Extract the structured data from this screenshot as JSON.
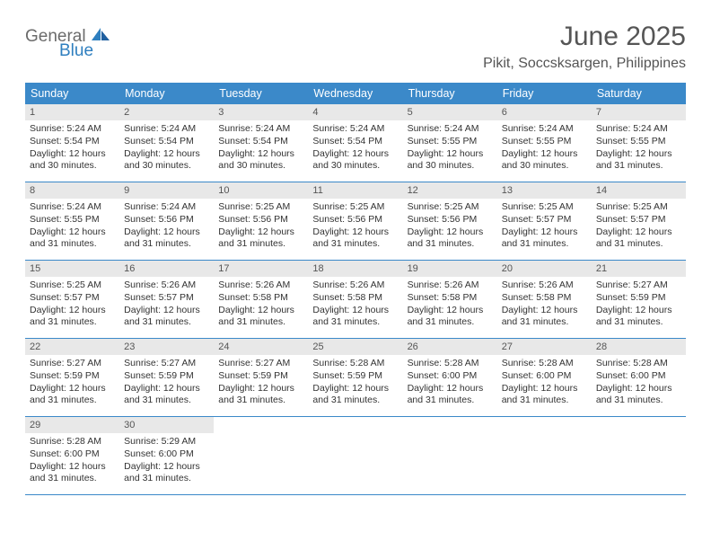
{
  "logo": {
    "word1": "General",
    "word2": "Blue"
  },
  "title": "June 2025",
  "location": "Pikit, Soccsksargen, Philippines",
  "colors": {
    "header_blue": "#3b89c9",
    "daynum_gray": "#e8e8e8",
    "rule_blue": "#3b89c9",
    "logo_gray": "#6b6b6b",
    "logo_blue": "#2f7fbf",
    "text": "#333333",
    "title_gray": "#555555"
  },
  "weekdays": [
    "Sunday",
    "Monday",
    "Tuesday",
    "Wednesday",
    "Thursday",
    "Friday",
    "Saturday"
  ],
  "weeks": [
    [
      {
        "n": "1",
        "sr": "Sunrise: 5:24 AM",
        "ss": "Sunset: 5:54 PM",
        "d1": "Daylight: 12 hours",
        "d2": "and 30 minutes."
      },
      {
        "n": "2",
        "sr": "Sunrise: 5:24 AM",
        "ss": "Sunset: 5:54 PM",
        "d1": "Daylight: 12 hours",
        "d2": "and 30 minutes."
      },
      {
        "n": "3",
        "sr": "Sunrise: 5:24 AM",
        "ss": "Sunset: 5:54 PM",
        "d1": "Daylight: 12 hours",
        "d2": "and 30 minutes."
      },
      {
        "n": "4",
        "sr": "Sunrise: 5:24 AM",
        "ss": "Sunset: 5:54 PM",
        "d1": "Daylight: 12 hours",
        "d2": "and 30 minutes."
      },
      {
        "n": "5",
        "sr": "Sunrise: 5:24 AM",
        "ss": "Sunset: 5:55 PM",
        "d1": "Daylight: 12 hours",
        "d2": "and 30 minutes."
      },
      {
        "n": "6",
        "sr": "Sunrise: 5:24 AM",
        "ss": "Sunset: 5:55 PM",
        "d1": "Daylight: 12 hours",
        "d2": "and 30 minutes."
      },
      {
        "n": "7",
        "sr": "Sunrise: 5:24 AM",
        "ss": "Sunset: 5:55 PM",
        "d1": "Daylight: 12 hours",
        "d2": "and 31 minutes."
      }
    ],
    [
      {
        "n": "8",
        "sr": "Sunrise: 5:24 AM",
        "ss": "Sunset: 5:55 PM",
        "d1": "Daylight: 12 hours",
        "d2": "and 31 minutes."
      },
      {
        "n": "9",
        "sr": "Sunrise: 5:24 AM",
        "ss": "Sunset: 5:56 PM",
        "d1": "Daylight: 12 hours",
        "d2": "and 31 minutes."
      },
      {
        "n": "10",
        "sr": "Sunrise: 5:25 AM",
        "ss": "Sunset: 5:56 PM",
        "d1": "Daylight: 12 hours",
        "d2": "and 31 minutes."
      },
      {
        "n": "11",
        "sr": "Sunrise: 5:25 AM",
        "ss": "Sunset: 5:56 PM",
        "d1": "Daylight: 12 hours",
        "d2": "and 31 minutes."
      },
      {
        "n": "12",
        "sr": "Sunrise: 5:25 AM",
        "ss": "Sunset: 5:56 PM",
        "d1": "Daylight: 12 hours",
        "d2": "and 31 minutes."
      },
      {
        "n": "13",
        "sr": "Sunrise: 5:25 AM",
        "ss": "Sunset: 5:57 PM",
        "d1": "Daylight: 12 hours",
        "d2": "and 31 minutes."
      },
      {
        "n": "14",
        "sr": "Sunrise: 5:25 AM",
        "ss": "Sunset: 5:57 PM",
        "d1": "Daylight: 12 hours",
        "d2": "and 31 minutes."
      }
    ],
    [
      {
        "n": "15",
        "sr": "Sunrise: 5:25 AM",
        "ss": "Sunset: 5:57 PM",
        "d1": "Daylight: 12 hours",
        "d2": "and 31 minutes."
      },
      {
        "n": "16",
        "sr": "Sunrise: 5:26 AM",
        "ss": "Sunset: 5:57 PM",
        "d1": "Daylight: 12 hours",
        "d2": "and 31 minutes."
      },
      {
        "n": "17",
        "sr": "Sunrise: 5:26 AM",
        "ss": "Sunset: 5:58 PM",
        "d1": "Daylight: 12 hours",
        "d2": "and 31 minutes."
      },
      {
        "n": "18",
        "sr": "Sunrise: 5:26 AM",
        "ss": "Sunset: 5:58 PM",
        "d1": "Daylight: 12 hours",
        "d2": "and 31 minutes."
      },
      {
        "n": "19",
        "sr": "Sunrise: 5:26 AM",
        "ss": "Sunset: 5:58 PM",
        "d1": "Daylight: 12 hours",
        "d2": "and 31 minutes."
      },
      {
        "n": "20",
        "sr": "Sunrise: 5:26 AM",
        "ss": "Sunset: 5:58 PM",
        "d1": "Daylight: 12 hours",
        "d2": "and 31 minutes."
      },
      {
        "n": "21",
        "sr": "Sunrise: 5:27 AM",
        "ss": "Sunset: 5:59 PM",
        "d1": "Daylight: 12 hours",
        "d2": "and 31 minutes."
      }
    ],
    [
      {
        "n": "22",
        "sr": "Sunrise: 5:27 AM",
        "ss": "Sunset: 5:59 PM",
        "d1": "Daylight: 12 hours",
        "d2": "and 31 minutes."
      },
      {
        "n": "23",
        "sr": "Sunrise: 5:27 AM",
        "ss": "Sunset: 5:59 PM",
        "d1": "Daylight: 12 hours",
        "d2": "and 31 minutes."
      },
      {
        "n": "24",
        "sr": "Sunrise: 5:27 AM",
        "ss": "Sunset: 5:59 PM",
        "d1": "Daylight: 12 hours",
        "d2": "and 31 minutes."
      },
      {
        "n": "25",
        "sr": "Sunrise: 5:28 AM",
        "ss": "Sunset: 5:59 PM",
        "d1": "Daylight: 12 hours",
        "d2": "and 31 minutes."
      },
      {
        "n": "26",
        "sr": "Sunrise: 5:28 AM",
        "ss": "Sunset: 6:00 PM",
        "d1": "Daylight: 12 hours",
        "d2": "and 31 minutes."
      },
      {
        "n": "27",
        "sr": "Sunrise: 5:28 AM",
        "ss": "Sunset: 6:00 PM",
        "d1": "Daylight: 12 hours",
        "d2": "and 31 minutes."
      },
      {
        "n": "28",
        "sr": "Sunrise: 5:28 AM",
        "ss": "Sunset: 6:00 PM",
        "d1": "Daylight: 12 hours",
        "d2": "and 31 minutes."
      }
    ],
    [
      {
        "n": "29",
        "sr": "Sunrise: 5:28 AM",
        "ss": "Sunset: 6:00 PM",
        "d1": "Daylight: 12 hours",
        "d2": "and 31 minutes."
      },
      {
        "n": "30",
        "sr": "Sunrise: 5:29 AM",
        "ss": "Sunset: 6:00 PM",
        "d1": "Daylight: 12 hours",
        "d2": "and 31 minutes."
      },
      null,
      null,
      null,
      null,
      null
    ]
  ]
}
